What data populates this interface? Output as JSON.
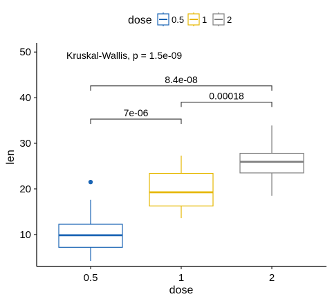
{
  "chart_data": {
    "type": "boxplot",
    "xlabel": "dose",
    "ylabel": "len",
    "ylim": [
      3,
      52
    ],
    "yticks": [
      10,
      20,
      30,
      40,
      50
    ],
    "categories": [
      "0.5",
      "1",
      "2"
    ],
    "legend": {
      "title": "dose",
      "position": "top",
      "entries": [
        {
          "label": "0.5",
          "color": "#1a64b4"
        },
        {
          "label": "1",
          "color": "#e6b800"
        },
        {
          "label": "2",
          "color": "#7f7f7f"
        }
      ]
    },
    "series": [
      {
        "category": "0.5",
        "color": "#1a64b4",
        "min": 4.2,
        "q1": 7.2,
        "median": 9.85,
        "q3": 12.25,
        "max": 17.6,
        "outliers": [
          21.5
        ]
      },
      {
        "category": "1",
        "color": "#e6b800",
        "min": 13.6,
        "q1": 16.25,
        "median": 19.25,
        "q3": 23.4,
        "max": 27.3,
        "outliers": []
      },
      {
        "category": "2",
        "color": "#7f7f7f",
        "min": 18.5,
        "q1": 23.5,
        "median": 25.95,
        "q3": 27.8,
        "max": 33.9,
        "outliers": []
      }
    ],
    "global_test": {
      "text": "Kruskal-Wallis, p = 1.5e-09",
      "y": 49.3
    },
    "comparisons": [
      {
        "group1": "0.5",
        "group2": "1",
        "label": "7e-06",
        "y": 35.3
      },
      {
        "group1": "1",
        "group2": "2",
        "label": "0.00018",
        "y": 39.0
      },
      {
        "group1": "0.5",
        "group2": "2",
        "label": "8.4e-08",
        "y": 42.6
      }
    ]
  }
}
